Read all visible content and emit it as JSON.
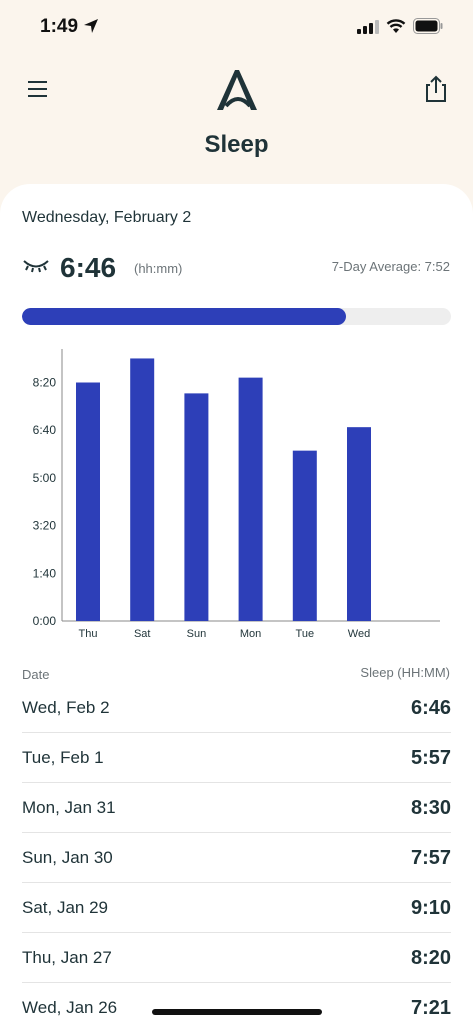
{
  "status_bar": {
    "time": "1:49"
  },
  "header": {
    "title": "Sleep"
  },
  "summary": {
    "date": "Wednesday, February 2",
    "value": "6:46",
    "unit": "(hh:mm)",
    "average_label": "7-Day Average: 7:52",
    "progress_fraction": 0.755
  },
  "colors": {
    "accent": "#2d3fb8",
    "text": "#1f3338",
    "header_bg": "#fbf5ed"
  },
  "chart_data": {
    "type": "bar",
    "categories": [
      "Thu",
      "Sat",
      "Sun",
      "Mon",
      "Tue",
      "Wed"
    ],
    "values": [
      8.33,
      9.17,
      7.95,
      8.5,
      5.95,
      6.77
    ],
    "yticks": [
      "0:00",
      "1:40",
      "3:20",
      "5:00",
      "6:40",
      "8:20"
    ],
    "ytick_values": [
      0,
      1.667,
      3.333,
      5,
      6.667,
      8.333
    ],
    "ylim": [
      0,
      9.5
    ],
    "title": "",
    "xlabel": "",
    "ylabel": ""
  },
  "table": {
    "date_header": "Date",
    "sleep_header": "Sleep (HH:MM)",
    "rows": [
      {
        "date": "Wed, Feb 2",
        "sleep": "6:46"
      },
      {
        "date": "Tue, Feb 1",
        "sleep": "5:57"
      },
      {
        "date": "Mon, Jan 31",
        "sleep": "8:30"
      },
      {
        "date": "Sun, Jan 30",
        "sleep": "7:57"
      },
      {
        "date": "Sat, Jan 29",
        "sleep": "9:10"
      },
      {
        "date": "Thu, Jan 27",
        "sleep": "8:20"
      },
      {
        "date": "Wed, Jan 26",
        "sleep": "7:21"
      }
    ]
  },
  "icons": {
    "menu": "hamburger-icon",
    "share": "share-icon",
    "logo": "brand-logo-icon",
    "sleep": "closed-eye-icon"
  }
}
